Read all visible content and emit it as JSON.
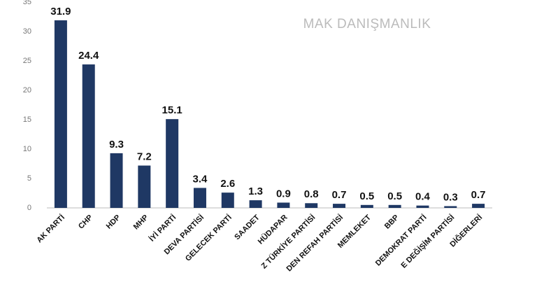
{
  "chart_data": {
    "type": "bar",
    "watermark": "MAK DANIŞMANLIK",
    "categories": [
      "AK PARTİ",
      "CHP",
      "HDP",
      "MHP",
      "İYİ PARTİ",
      "DEVA PARTİSİ",
      "GELECEK PARTİ",
      "SAADET",
      "HÜDAPAR",
      "Z TÜRKİYE PARTİSİ",
      "DEN REFAH PARTİSİ",
      "MEMLEKET",
      "BBP",
      "DEMOKRAT PARTİ",
      "E DEĞİŞİM PARTİSİ",
      "DİĞERLERİ"
    ],
    "values": [
      31.9,
      24.4,
      9.3,
      7.2,
      15.1,
      3.4,
      2.6,
      1.3,
      0.9,
      0.8,
      0.7,
      0.5,
      0.5,
      0.4,
      0.3,
      0.7
    ],
    "color": "#1f3864",
    "ylim": [
      0,
      35
    ],
    "yticks": [
      0,
      5,
      10,
      15,
      20,
      25,
      30,
      35
    ],
    "grid": false
  }
}
